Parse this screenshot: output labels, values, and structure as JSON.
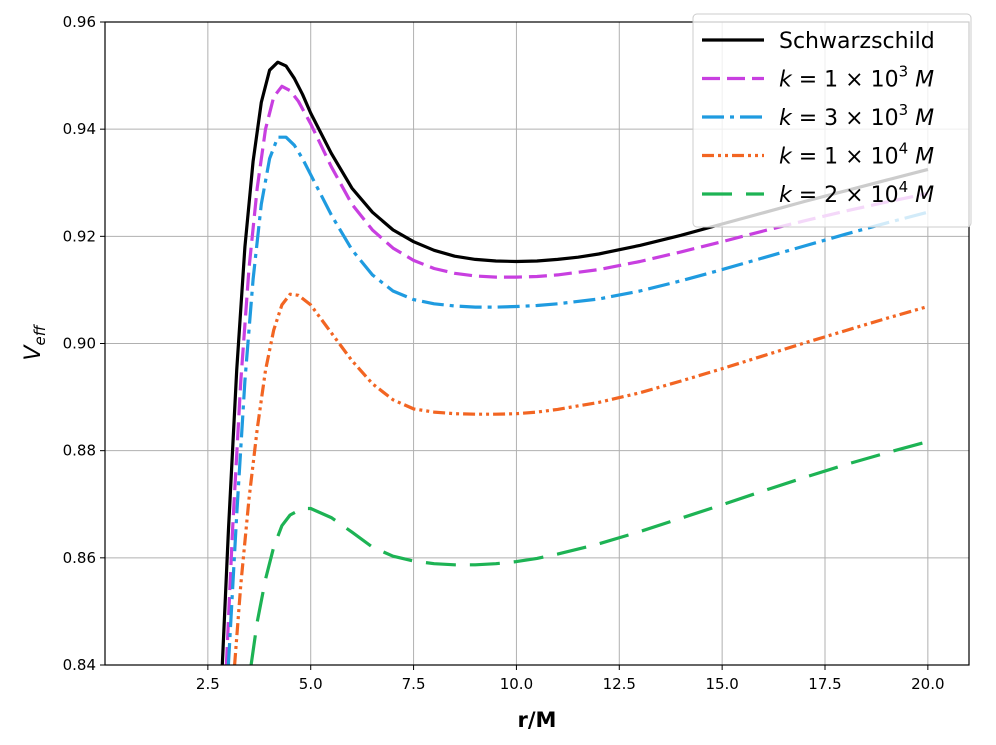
{
  "chart_data": {
    "type": "line",
    "xlabel": "r/M",
    "ylabel_main": "V",
    "ylabel_sub": "eff",
    "xlim": [
      0.0,
      21.0
    ],
    "ylim": [
      0.84,
      0.96
    ],
    "grid": true,
    "legend_placement": "top-right",
    "xticks": [
      {
        "value": 2.5,
        "label": "2.5"
      },
      {
        "value": 5.0,
        "label": "5.0"
      },
      {
        "value": 7.5,
        "label": "7.5"
      },
      {
        "value": 10.0,
        "label": "10.0"
      },
      {
        "value": 12.5,
        "label": "12.5"
      },
      {
        "value": 15.0,
        "label": "15.0"
      },
      {
        "value": 17.5,
        "label": "17.5"
      },
      {
        "value": 20.0,
        "label": "20.0"
      }
    ],
    "yticks": [
      {
        "value": 0.84,
        "label": "0.84"
      },
      {
        "value": 0.86,
        "label": "0.86"
      },
      {
        "value": 0.88,
        "label": "0.88"
      },
      {
        "value": 0.9,
        "label": "0.90"
      },
      {
        "value": 0.92,
        "label": "0.92"
      },
      {
        "value": 0.94,
        "label": "0.94"
      },
      {
        "value": 0.96,
        "label": "0.96"
      }
    ],
    "series": [
      {
        "name": "Schwarzschild",
        "color": "#000000",
        "dash": "solid",
        "points": [
          [
            2.85,
            0.84
          ],
          [
            3.0,
            0.865
          ],
          [
            3.2,
            0.895
          ],
          [
            3.4,
            0.918
          ],
          [
            3.6,
            0.934
          ],
          [
            3.8,
            0.945
          ],
          [
            4.0,
            0.951
          ],
          [
            4.2,
            0.9525
          ],
          [
            4.4,
            0.9518
          ],
          [
            4.6,
            0.9495
          ],
          [
            4.8,
            0.9465
          ],
          [
            5.0,
            0.943
          ],
          [
            5.5,
            0.9355
          ],
          [
            6.0,
            0.929
          ],
          [
            6.5,
            0.9245
          ],
          [
            7.0,
            0.9212
          ],
          [
            7.5,
            0.919
          ],
          [
            8.0,
            0.9174
          ],
          [
            8.5,
            0.9163
          ],
          [
            9.0,
            0.9157
          ],
          [
            9.5,
            0.9154
          ],
          [
            10.0,
            0.9153
          ],
          [
            10.5,
            0.9154
          ],
          [
            11.0,
            0.9157
          ],
          [
            11.5,
            0.9161
          ],
          [
            12.0,
            0.9167
          ],
          [
            13.0,
            0.9183
          ],
          [
            14.0,
            0.9202
          ],
          [
            15.0,
            0.9223
          ],
          [
            16.0,
            0.9244
          ],
          [
            17.0,
            0.9265
          ],
          [
            18.0,
            0.9285
          ],
          [
            19.0,
            0.9305
          ],
          [
            20.0,
            0.9325
          ]
        ]
      },
      {
        "name": "k = 1 × 10^3 M",
        "label_parts": {
          "base": "1",
          "exp": "3"
        },
        "color": "#c83fe0",
        "dash": "dashed",
        "points": [
          [
            2.95,
            0.84
          ],
          [
            3.1,
            0.865
          ],
          [
            3.3,
            0.893
          ],
          [
            3.5,
            0.914
          ],
          [
            3.7,
            0.929
          ],
          [
            3.9,
            0.94
          ],
          [
            4.1,
            0.946
          ],
          [
            4.3,
            0.948
          ],
          [
            4.5,
            0.9472
          ],
          [
            4.7,
            0.9452
          ],
          [
            5.0,
            0.941
          ],
          [
            5.5,
            0.933
          ],
          [
            6.0,
            0.926
          ],
          [
            6.5,
            0.9212
          ],
          [
            7.0,
            0.9178
          ],
          [
            7.5,
            0.9155
          ],
          [
            8.0,
            0.914
          ],
          [
            8.5,
            0.9131
          ],
          [
            9.0,
            0.9126
          ],
          [
            9.5,
            0.9124
          ],
          [
            10.0,
            0.9124
          ],
          [
            10.5,
            0.9125
          ],
          [
            11.0,
            0.9128
          ],
          [
            12.0,
            0.9138
          ],
          [
            13.0,
            0.9153
          ],
          [
            14.0,
            0.9171
          ],
          [
            15.0,
            0.919
          ],
          [
            16.0,
            0.921
          ],
          [
            17.0,
            0.9229
          ],
          [
            18.0,
            0.9247
          ],
          [
            19.0,
            0.9264
          ],
          [
            20.0,
            0.928
          ]
        ]
      },
      {
        "name": "k = 3 × 10^3 M",
        "label_parts": {
          "base": "3",
          "exp": "3"
        },
        "color": "#1f9be0",
        "dash": "dashdot",
        "points": [
          [
            3.0,
            0.84
          ],
          [
            3.2,
            0.868
          ],
          [
            3.4,
            0.893
          ],
          [
            3.6,
            0.912
          ],
          [
            3.8,
            0.926
          ],
          [
            4.0,
            0.9345
          ],
          [
            4.2,
            0.9385
          ],
          [
            4.4,
            0.9385
          ],
          [
            4.6,
            0.937
          ],
          [
            4.8,
            0.9345
          ],
          [
            5.0,
            0.9315
          ],
          [
            5.5,
            0.924
          ],
          [
            6.0,
            0.9175
          ],
          [
            6.5,
            0.9128
          ],
          [
            7.0,
            0.9098
          ],
          [
            7.5,
            0.9082
          ],
          [
            8.0,
            0.9074
          ],
          [
            8.5,
            0.907
          ],
          [
            9.0,
            0.9068
          ],
          [
            9.5,
            0.9068
          ],
          [
            10.0,
            0.9069
          ],
          [
            10.5,
            0.9071
          ],
          [
            11.0,
            0.9074
          ],
          [
            12.0,
            0.9083
          ],
          [
            13.0,
            0.9098
          ],
          [
            14.0,
            0.9117
          ],
          [
            15.0,
            0.9138
          ],
          [
            16.0,
            0.916
          ],
          [
            17.0,
            0.9182
          ],
          [
            18.0,
            0.9204
          ],
          [
            19.0,
            0.9225
          ],
          [
            20.0,
            0.9245
          ]
        ]
      },
      {
        "name": "k = 1 × 10^4 M",
        "label_parts": {
          "base": "1",
          "exp": "4"
        },
        "color": "#f26522",
        "dash": "dashdotdot",
        "points": [
          [
            3.15,
            0.84
          ],
          [
            3.3,
            0.855
          ],
          [
            3.5,
            0.871
          ],
          [
            3.7,
            0.884
          ],
          [
            3.9,
            0.895
          ],
          [
            4.1,
            0.9025
          ],
          [
            4.3,
            0.9072
          ],
          [
            4.5,
            0.9092
          ],
          [
            4.7,
            0.909
          ],
          [
            5.0,
            0.9072
          ],
          [
            5.5,
            0.902
          ],
          [
            6.0,
            0.8968
          ],
          [
            6.5,
            0.8925
          ],
          [
            7.0,
            0.8895
          ],
          [
            7.5,
            0.8878
          ],
          [
            8.0,
            0.8872
          ],
          [
            8.5,
            0.8869
          ],
          [
            9.0,
            0.8868
          ],
          [
            9.5,
            0.8868
          ],
          [
            10.0,
            0.8869
          ],
          [
            10.5,
            0.8872
          ],
          [
            11.0,
            0.8877
          ],
          [
            12.0,
            0.889
          ],
          [
            13.0,
            0.8908
          ],
          [
            14.0,
            0.893
          ],
          [
            15.0,
            0.8953
          ],
          [
            16.0,
            0.8977
          ],
          [
            17.0,
            0.9001
          ],
          [
            18.0,
            0.9024
          ],
          [
            19.0,
            0.9047
          ],
          [
            20.0,
            0.9069
          ]
        ]
      },
      {
        "name": "k = 2 × 10^4 M",
        "label_parts": {
          "base": "2",
          "exp": "4"
        },
        "color": "#1db354",
        "dash": "longdash",
        "points": [
          [
            3.55,
            0.84
          ],
          [
            3.7,
            0.848
          ],
          [
            3.9,
            0.856
          ],
          [
            4.1,
            0.862
          ],
          [
            4.3,
            0.866
          ],
          [
            4.5,
            0.868
          ],
          [
            4.8,
            0.8692
          ],
          [
            5.0,
            0.8692
          ],
          [
            5.5,
            0.8675
          ],
          [
            6.0,
            0.8648
          ],
          [
            6.5,
            0.862
          ],
          [
            7.0,
            0.8603
          ],
          [
            7.5,
            0.8594
          ],
          [
            8.0,
            0.8589
          ],
          [
            8.5,
            0.8587
          ],
          [
            9.0,
            0.8587
          ],
          [
            9.5,
            0.8589
          ],
          [
            10.0,
            0.8593
          ],
          [
            10.5,
            0.8599
          ],
          [
            11.0,
            0.8607
          ],
          [
            12.0,
            0.8626
          ],
          [
            13.0,
            0.8649
          ],
          [
            14.0,
            0.8674
          ],
          [
            15.0,
            0.8699
          ],
          [
            16.0,
            0.8725
          ],
          [
            17.0,
            0.875
          ],
          [
            18.0,
            0.8774
          ],
          [
            19.0,
            0.8796
          ],
          [
            20.0,
            0.8817
          ]
        ]
      }
    ]
  }
}
